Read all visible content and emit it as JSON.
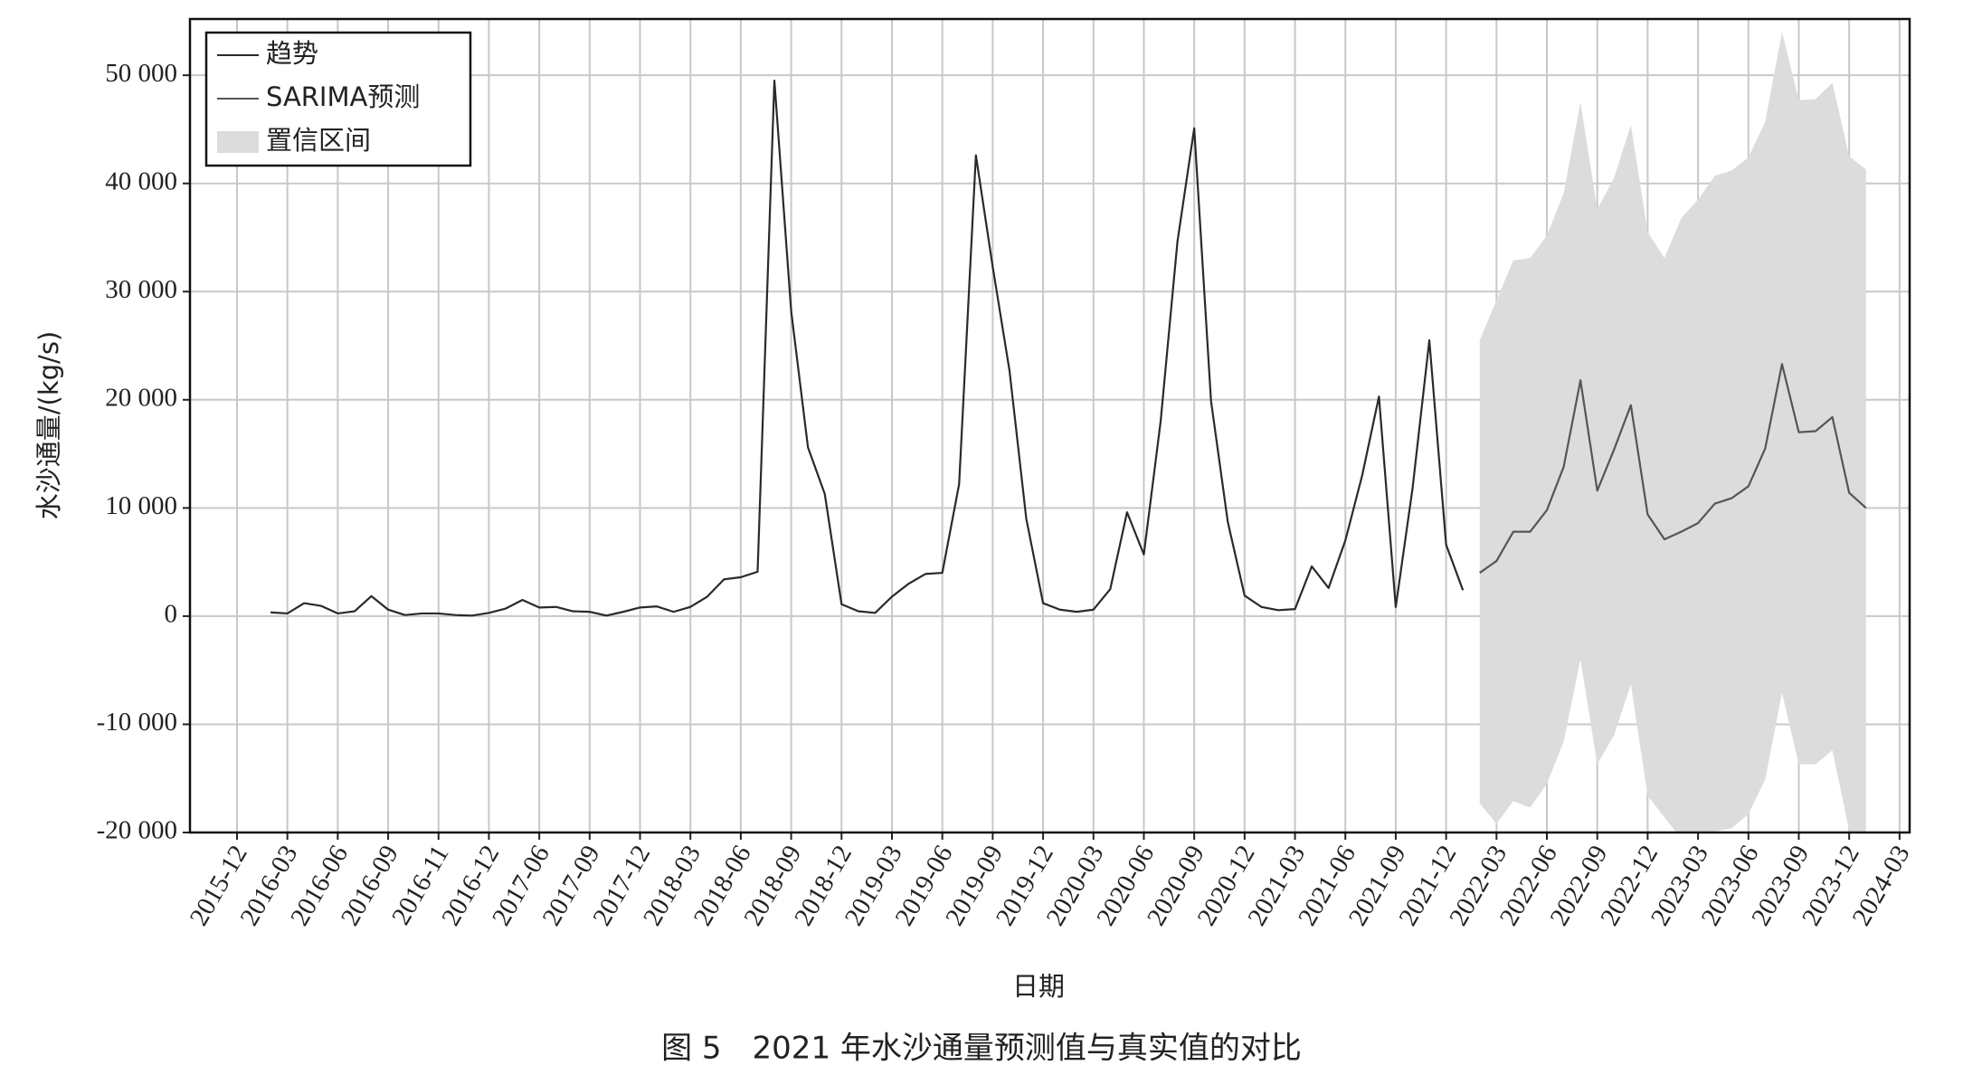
{
  "chart_data": {
    "type": "line",
    "caption": "图 5　2021 年水沙通量预测值与真实值的对比",
    "xlabel": "日期",
    "ylabel": "水沙通量/(kg/s)",
    "categories": [
      "2015-12",
      null,
      null,
      "2016-03",
      null,
      null,
      "2016-06",
      null,
      null,
      "2016-09",
      null,
      null,
      "2016-11",
      null,
      null,
      "2016-12",
      null,
      null,
      "2017-06",
      null,
      null,
      "2017-09",
      null,
      null,
      "2017-12",
      null,
      null,
      "2018-03",
      null,
      null,
      "2018-06",
      null,
      null,
      "2018-09",
      null,
      null,
      "2018-12",
      null,
      null,
      "2019-03",
      null,
      null,
      "2019-06",
      null,
      null,
      "2019-09",
      null,
      null,
      "2019-12",
      null,
      null,
      "2020-03",
      null,
      null,
      "2020-06",
      null,
      null,
      "2020-09",
      null,
      null,
      "2020-12",
      null,
      null,
      "2021-03",
      null,
      null,
      "2021-06",
      null,
      null,
      "2021-09",
      null,
      null,
      "2021-12",
      null,
      null,
      "2022-03",
      null,
      null,
      "2022-06",
      null,
      null,
      "2022-09",
      null,
      null,
      "2022-12",
      null,
      null,
      "2023-03",
      null,
      null,
      "2023-06",
      null,
      null,
      "2023-09",
      null,
      null,
      "2023-12",
      null,
      null,
      "2024-03"
    ],
    "series": [
      {
        "name": "趋势",
        "color": "#2a2a2a",
        "values": [
          null,
          null,
          350,
          250,
          1200,
          950,
          250,
          450,
          1850,
          600,
          100,
          250,
          250,
          100,
          50,
          300,
          700,
          1500,
          800,
          850,
          450,
          400,
          50,
          400,
          800,
          900,
          400,
          850,
          1800,
          3400,
          3600,
          4100,
          49500,
          28200,
          15600,
          11300,
          1100,
          450,
          300,
          1800,
          3000,
          3900,
          4000,
          12200,
          42600,
          32300,
          22700,
          9000,
          1200,
          600,
          400,
          600,
          2500,
          9600,
          5700,
          18000,
          34600,
          45100,
          19900,
          8700,
          1900,
          850,
          550,
          650,
          4600,
          2600,
          7000,
          13000,
          20300,
          850,
          11800,
          25500,
          6600,
          2400,
          null,
          null,
          null,
          null,
          null,
          null,
          null,
          null,
          null,
          null,
          null,
          null,
          null,
          null,
          null,
          null,
          null,
          null,
          null,
          null,
          null,
          null,
          null,
          null,
          null,
          null
        ]
      },
      {
        "name": "SARIMA预测",
        "color": "#555555",
        "values": [
          null,
          null,
          null,
          null,
          null,
          null,
          null,
          null,
          null,
          null,
          null,
          null,
          null,
          null,
          null,
          null,
          null,
          null,
          null,
          null,
          null,
          null,
          null,
          null,
          null,
          null,
          null,
          null,
          null,
          null,
          null,
          null,
          null,
          null,
          null,
          null,
          null,
          null,
          null,
          null,
          null,
          null,
          null,
          null,
          null,
          null,
          null,
          null,
          null,
          null,
          null,
          null,
          null,
          null,
          null,
          null,
          null,
          null,
          null,
          null,
          null,
          null,
          null,
          null,
          null,
          null,
          null,
          null,
          null,
          null,
          null,
          null,
          null,
          null,
          4000,
          5100,
          7800,
          7800,
          9800,
          13800,
          21800,
          11600,
          15400,
          19500,
          9400,
          7100,
          7800,
          8600,
          10400,
          10900,
          12000,
          15500,
          23300,
          17000,
          17100,
          18400,
          11400,
          10000,
          null,
          null
        ]
      }
    ],
    "interval": {
      "name": "置信区间",
      "color": "#dcdcdc",
      "upper": [
        null,
        null,
        null,
        null,
        null,
        null,
        null,
        null,
        null,
        null,
        null,
        null,
        null,
        null,
        null,
        null,
        null,
        null,
        null,
        null,
        null,
        null,
        null,
        null,
        null,
        null,
        null,
        null,
        null,
        null,
        null,
        null,
        null,
        null,
        null,
        null,
        null,
        null,
        null,
        null,
        null,
        null,
        null,
        null,
        null,
        null,
        null,
        null,
        null,
        null,
        null,
        null,
        null,
        null,
        null,
        null,
        null,
        null,
        null,
        null,
        null,
        null,
        null,
        null,
        null,
        null,
        null,
        null,
        null,
        null,
        null,
        null,
        null,
        null,
        25500,
        29200,
        32900,
        33100,
        35200,
        39100,
        47500,
        37600,
        40500,
        45400,
        35500,
        33100,
        36800,
        38500,
        40700,
        41200,
        42400,
        45700,
        54000,
        47700,
        47800,
        49300,
        42500,
        41300,
        null,
        null
      ],
      "lower": [
        null,
        null,
        null,
        null,
        null,
        null,
        null,
        null,
        null,
        null,
        null,
        null,
        null,
        null,
        null,
        null,
        null,
        null,
        null,
        null,
        null,
        null,
        null,
        null,
        null,
        null,
        null,
        null,
        null,
        null,
        null,
        null,
        null,
        null,
        null,
        null,
        null,
        null,
        null,
        null,
        null,
        null,
        null,
        null,
        null,
        null,
        null,
        null,
        null,
        null,
        null,
        null,
        null,
        null,
        null,
        null,
        null,
        null,
        null,
        null,
        null,
        null,
        null,
        null,
        null,
        null,
        null,
        null,
        null,
        null,
        null,
        null,
        null,
        null,
        -17300,
        -19200,
        -17100,
        -17700,
        -15500,
        -11600,
        -4000,
        -13700,
        -11000,
        -6300,
        -16600,
        -18600,
        -20600,
        -21100,
        -19900,
        -19600,
        -18300,
        -15100,
        -7100,
        -13700,
        -13700,
        -12400,
        -19800,
        -21300,
        null,
        null
      ]
    },
    "ylim": [
      -20000,
      55200
    ],
    "yticks": [
      {
        "value": -20000,
        "label": "-20 000"
      },
      {
        "value": -10000,
        "label": "-10 000"
      },
      0,
      {
        "value": 10000,
        "label": "10 000"
      },
      {
        "value": 20000,
        "label": "20 000"
      },
      {
        "value": 30000,
        "label": "30 000"
      },
      {
        "value": 40000,
        "label": "40 000"
      },
      {
        "value": 50000,
        "label": "50 000"
      }
    ],
    "grid": true,
    "legend": "upper-left"
  }
}
